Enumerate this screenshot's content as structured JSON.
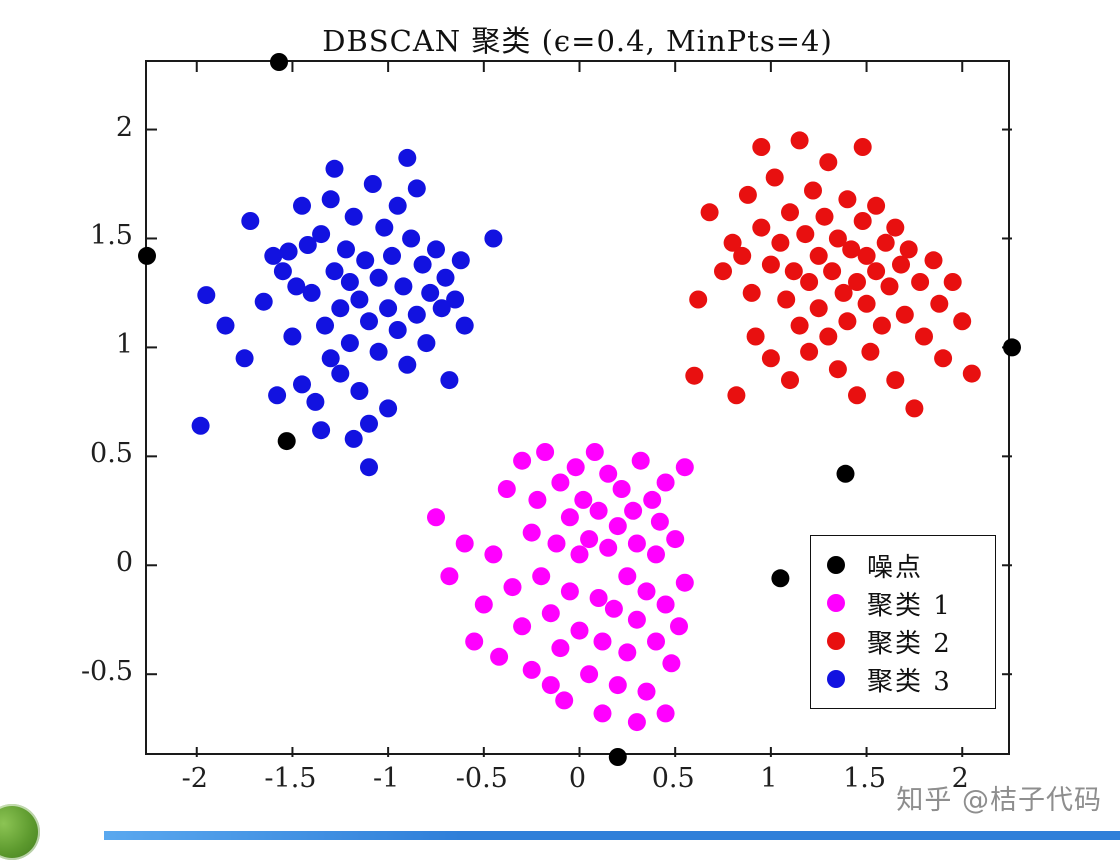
{
  "page": {
    "watermark": "知乎 @桔子代码"
  },
  "chart_data": {
    "type": "scatter",
    "title": "DBSCAN 聚类 (ϵ=0.4, MinPts=4)",
    "xlabel": "",
    "ylabel": "",
    "xlim": [
      -2.26,
      2.26
    ],
    "ylim": [
      -0.88,
      2.31
    ],
    "x_ticks": [
      -2,
      -1.5,
      -1,
      -0.5,
      0,
      0.5,
      1,
      1.5,
      2
    ],
    "x_tick_labels": [
      "-2",
      "-1.5",
      "-1",
      "-0.5",
      "0",
      "0.5",
      "1",
      "1.5",
      "2"
    ],
    "y_ticks": [
      -0.5,
      0,
      0.5,
      1,
      1.5,
      2
    ],
    "y_tick_labels": [
      "-0.5",
      "0",
      "0.5",
      "1",
      "1.5",
      "2"
    ],
    "grid": false,
    "legend_position": "lower right",
    "marker_diameter_px": 18,
    "series": [
      {
        "name": "噪点",
        "color": "#000000",
        "points": [
          [
            -1.57,
            2.31
          ],
          [
            -2.26,
            1.42
          ],
          [
            -1.53,
            0.57
          ],
          [
            2.26,
            1.0
          ],
          [
            1.39,
            0.42
          ],
          [
            1.05,
            -0.06
          ],
          [
            0.2,
            -0.88
          ]
        ]
      },
      {
        "name": "聚类 1",
        "color": "#FF00FF",
        "points": [
          [
            -0.75,
            0.22
          ],
          [
            -0.68,
            -0.05
          ],
          [
            -0.6,
            0.1
          ],
          [
            -0.55,
            -0.35
          ],
          [
            -0.5,
            -0.18
          ],
          [
            -0.45,
            0.05
          ],
          [
            -0.42,
            -0.42
          ],
          [
            -0.38,
            0.35
          ],
          [
            -0.35,
            -0.1
          ],
          [
            -0.3,
            0.48
          ],
          [
            -0.3,
            -0.28
          ],
          [
            -0.25,
            0.15
          ],
          [
            -0.25,
            -0.48
          ],
          [
            -0.22,
            0.3
          ],
          [
            -0.2,
            -0.05
          ],
          [
            -0.18,
            0.52
          ],
          [
            -0.15,
            -0.22
          ],
          [
            -0.12,
            0.1
          ],
          [
            -0.1,
            0.38
          ],
          [
            -0.1,
            -0.38
          ],
          [
            -0.08,
            -0.62
          ],
          [
            -0.05,
            0.22
          ],
          [
            -0.05,
            -0.12
          ],
          [
            -0.02,
            0.45
          ],
          [
            0.0,
            0.05
          ],
          [
            0.0,
            -0.3
          ],
          [
            0.02,
            0.3
          ],
          [
            0.05,
            -0.5
          ],
          [
            0.05,
            0.12
          ],
          [
            0.08,
            0.52
          ],
          [
            0.1,
            -0.15
          ],
          [
            0.1,
            0.25
          ],
          [
            0.12,
            -0.68
          ],
          [
            0.12,
            -0.35
          ],
          [
            0.15,
            0.08
          ],
          [
            0.15,
            0.42
          ],
          [
            0.18,
            -0.2
          ],
          [
            0.2,
            0.18
          ],
          [
            0.2,
            -0.55
          ],
          [
            0.22,
            0.35
          ],
          [
            0.25,
            -0.05
          ],
          [
            0.25,
            -0.4
          ],
          [
            0.28,
            0.25
          ],
          [
            0.3,
            -0.25
          ],
          [
            0.3,
            0.1
          ],
          [
            0.32,
            0.48
          ],
          [
            0.35,
            -0.12
          ],
          [
            0.35,
            -0.58
          ],
          [
            0.38,
            0.3
          ],
          [
            0.4,
            -0.35
          ],
          [
            0.4,
            0.05
          ],
          [
            0.42,
            0.2
          ],
          [
            0.45,
            -0.18
          ],
          [
            0.45,
            0.38
          ],
          [
            0.48,
            -0.45
          ],
          [
            0.5,
            0.12
          ],
          [
            0.52,
            -0.28
          ],
          [
            0.55,
            0.45
          ],
          [
            0.55,
            -0.08
          ],
          [
            0.45,
            -0.68
          ],
          [
            -0.15,
            -0.55
          ],
          [
            0.3,
            -0.72
          ]
        ]
      },
      {
        "name": "聚类 2",
        "color": "#E81010",
        "points": [
          [
            0.62,
            1.22
          ],
          [
            0.6,
            0.87
          ],
          [
            0.68,
            1.62
          ],
          [
            0.75,
            1.35
          ],
          [
            0.8,
            1.48
          ],
          [
            0.82,
            0.78
          ],
          [
            0.88,
            1.7
          ],
          [
            0.9,
            1.25
          ],
          [
            0.92,
            1.05
          ],
          [
            0.95,
            1.55
          ],
          [
            0.95,
            1.92
          ],
          [
            1.0,
            1.38
          ],
          [
            1.0,
            0.95
          ],
          [
            1.02,
            1.78
          ],
          [
            1.05,
            1.48
          ],
          [
            1.08,
            1.22
          ],
          [
            1.1,
            1.62
          ],
          [
            1.1,
            0.85
          ],
          [
            1.12,
            1.35
          ],
          [
            1.15,
            1.95
          ],
          [
            1.15,
            1.1
          ],
          [
            1.18,
            1.52
          ],
          [
            1.2,
            1.3
          ],
          [
            1.2,
            0.98
          ],
          [
            1.22,
            1.72
          ],
          [
            1.25,
            1.42
          ],
          [
            1.25,
            1.18
          ],
          [
            1.28,
            1.6
          ],
          [
            1.3,
            1.05
          ],
          [
            1.3,
            1.85
          ],
          [
            1.32,
            1.35
          ],
          [
            1.35,
            1.5
          ],
          [
            1.35,
            0.9
          ],
          [
            1.38,
            1.25
          ],
          [
            1.4,
            1.68
          ],
          [
            1.4,
            1.12
          ],
          [
            1.42,
            1.45
          ],
          [
            1.45,
            1.3
          ],
          [
            1.45,
            0.78
          ],
          [
            1.48,
            1.58
          ],
          [
            1.5,
            1.2
          ],
          [
            1.5,
            1.42
          ],
          [
            1.52,
            0.98
          ],
          [
            1.55,
            1.65
          ],
          [
            1.55,
            1.35
          ],
          [
            1.58,
            1.1
          ],
          [
            1.6,
            1.48
          ],
          [
            1.62,
            1.28
          ],
          [
            1.65,
            0.85
          ],
          [
            1.65,
            1.55
          ],
          [
            1.68,
            1.38
          ],
          [
            1.7,
            1.15
          ],
          [
            1.72,
            1.45
          ],
          [
            1.75,
            0.72
          ],
          [
            1.78,
            1.3
          ],
          [
            1.8,
            1.05
          ],
          [
            1.85,
            1.4
          ],
          [
            1.88,
            1.2
          ],
          [
            1.9,
            0.95
          ],
          [
            1.95,
            1.3
          ],
          [
            2.0,
            1.12
          ],
          [
            2.05,
            0.88
          ],
          [
            1.48,
            1.92
          ],
          [
            0.85,
            1.42
          ]
        ]
      },
      {
        "name": "聚类 3",
        "color": "#1212E0",
        "points": [
          [
            -1.95,
            1.24
          ],
          [
            -1.98,
            0.64
          ],
          [
            -1.72,
            1.58
          ],
          [
            -1.65,
            1.21
          ],
          [
            -1.6,
            1.42
          ],
          [
            -1.55,
            1.35
          ],
          [
            -1.52,
            1.44
          ],
          [
            -1.5,
            1.05
          ],
          [
            -1.48,
            1.28
          ],
          [
            -1.45,
            0.83
          ],
          [
            -1.42,
            1.47
          ],
          [
            -1.4,
            1.25
          ],
          [
            -1.38,
            0.75
          ],
          [
            -1.35,
            1.52
          ],
          [
            -1.33,
            1.1
          ],
          [
            -1.3,
            1.68
          ],
          [
            -1.3,
            0.95
          ],
          [
            -1.28,
            1.35
          ],
          [
            -1.25,
            1.18
          ],
          [
            -1.25,
            0.88
          ],
          [
            -1.22,
            1.45
          ],
          [
            -1.2,
            1.3
          ],
          [
            -1.2,
            1.02
          ],
          [
            -1.18,
            1.6
          ],
          [
            -1.15,
            1.22
          ],
          [
            -1.15,
            0.8
          ],
          [
            -1.12,
            1.4
          ],
          [
            -1.1,
            1.12
          ],
          [
            -1.1,
            0.65
          ],
          [
            -1.08,
            1.75
          ],
          [
            -1.05,
            1.32
          ],
          [
            -1.05,
            0.98
          ],
          [
            -1.02,
            1.55
          ],
          [
            -1.0,
            1.18
          ],
          [
            -1.0,
            0.72
          ],
          [
            -0.98,
            1.42
          ],
          [
            -0.95,
            1.08
          ],
          [
            -0.95,
            1.65
          ],
          [
            -0.92,
            1.28
          ],
          [
            -0.9,
            1.87
          ],
          [
            -0.9,
            0.92
          ],
          [
            -0.88,
            1.5
          ],
          [
            -0.85,
            1.73
          ],
          [
            -0.85,
            1.15
          ],
          [
            -0.82,
            1.38
          ],
          [
            -0.8,
            1.02
          ],
          [
            -0.78,
            1.25
          ],
          [
            -0.75,
            1.45
          ],
          [
            -0.72,
            1.18
          ],
          [
            -0.7,
            1.32
          ],
          [
            -0.68,
            0.85
          ],
          [
            -0.65,
            1.22
          ],
          [
            -0.62,
            1.4
          ],
          [
            -0.6,
            1.1
          ],
          [
            -0.45,
            1.5
          ],
          [
            -1.1,
            0.45
          ],
          [
            -1.35,
            0.62
          ],
          [
            -1.58,
            0.78
          ],
          [
            -1.75,
            0.95
          ],
          [
            -1.85,
            1.1
          ],
          [
            -1.28,
            1.82
          ],
          [
            -1.45,
            1.65
          ],
          [
            -1.18,
            0.58
          ]
        ]
      }
    ]
  }
}
